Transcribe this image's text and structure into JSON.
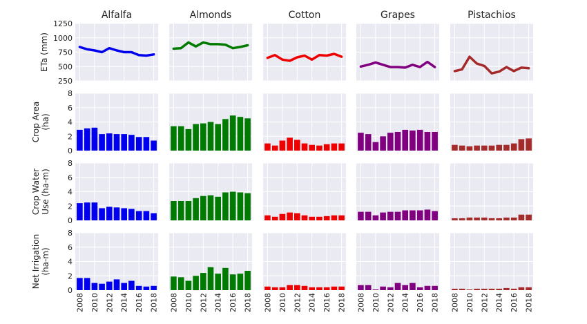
{
  "chart_data": {
    "type": "grid",
    "years": [
      2008,
      2009,
      2010,
      2011,
      2012,
      2013,
      2014,
      2015,
      2016,
      2017,
      2018
    ],
    "x_tick_labels": [
      "2008",
      "2010",
      "2012",
      "2014",
      "2016",
      "2018"
    ],
    "x_tick_values": [
      2008,
      2010,
      2012,
      2014,
      2016,
      2018
    ],
    "crops": [
      {
        "name": "Alfalfa",
        "color": "#0000ee"
      },
      {
        "name": "Almonds",
        "color": "#007a00"
      },
      {
        "name": "Cotton",
        "color": "#ee0000"
      },
      {
        "name": "Grapes",
        "color": "#800080"
      },
      {
        "name": "Pistachios",
        "color": "#a52a2a"
      }
    ],
    "rows": [
      {
        "type": "line",
        "label_lines": [
          "ETa (mm)"
        ],
        "ylim": [
          250,
          1250
        ],
        "y_ticks": [
          250,
          500,
          750,
          1000,
          1250
        ],
        "y_tick_labels": [
          "250",
          "500",
          "750",
          "1000",
          "1250"
        ],
        "values": {
          "Alfalfa": [
            840,
            800,
            780,
            750,
            820,
            780,
            750,
            750,
            700,
            690,
            710
          ],
          "Almonds": [
            810,
            820,
            920,
            850,
            920,
            890,
            890,
            880,
            820,
            840,
            870
          ],
          "Cotton": [
            650,
            700,
            620,
            600,
            660,
            690,
            620,
            700,
            690,
            720,
            670
          ],
          "Grapes": [
            500,
            530,
            570,
            530,
            490,
            490,
            480,
            530,
            490,
            580,
            490
          ],
          "Pistachios": [
            420,
            450,
            670,
            550,
            510,
            380,
            410,
            490,
            420,
            480,
            470
          ]
        }
      },
      {
        "type": "bar",
        "label_lines": [
          "Crop Area",
          "(ha)"
        ],
        "ylim": [
          0,
          8
        ],
        "y_ticks": [
          0,
          2,
          4,
          6,
          8
        ],
        "y_tick_labels": [
          "0",
          "2",
          "4",
          "6",
          "8"
        ],
        "values": {
          "Alfalfa": [
            2.9,
            3.1,
            3.2,
            2.3,
            2.4,
            2.3,
            2.3,
            2.2,
            1.9,
            1.9,
            1.4
          ],
          "Almonds": [
            3.4,
            3.4,
            3.0,
            3.7,
            3.8,
            4.0,
            3.7,
            4.4,
            4.9,
            4.7,
            4.5
          ],
          "Cotton": [
            1.0,
            0.7,
            1.4,
            1.8,
            1.5,
            1.0,
            0.8,
            0.7,
            0.9,
            1.0,
            1.0
          ],
          "Grapes": [
            2.5,
            2.3,
            1.2,
            2.0,
            2.5,
            2.6,
            2.9,
            2.8,
            2.9,
            2.6,
            2.6
          ],
          "Pistachios": [
            0.8,
            0.7,
            0.6,
            0.7,
            0.7,
            0.7,
            0.8,
            0.8,
            1.0,
            1.6,
            1.7
          ]
        }
      },
      {
        "type": "bar",
        "label_lines": [
          "Crop Water",
          "Use (ha-m)"
        ],
        "ylim": [
          0,
          8
        ],
        "y_ticks": [
          0,
          2,
          4,
          6,
          8
        ],
        "y_tick_labels": [
          "0",
          "2",
          "4",
          "6",
          "8"
        ],
        "values": {
          "Alfalfa": [
            2.4,
            2.5,
            2.5,
            1.7,
            1.9,
            1.8,
            1.7,
            1.6,
            1.3,
            1.3,
            1.0
          ],
          "Almonds": [
            2.7,
            2.7,
            2.7,
            3.1,
            3.4,
            3.5,
            3.3,
            3.9,
            4.0,
            3.9,
            3.8
          ],
          "Cotton": [
            0.7,
            0.5,
            0.9,
            1.1,
            1.0,
            0.7,
            0.5,
            0.5,
            0.6,
            0.7,
            0.7
          ],
          "Grapes": [
            1.2,
            1.2,
            0.7,
            1.1,
            1.2,
            1.2,
            1.4,
            1.4,
            1.4,
            1.5,
            1.3
          ],
          "Pistachios": [
            0.3,
            0.3,
            0.4,
            0.4,
            0.4,
            0.3,
            0.3,
            0.4,
            0.4,
            0.8,
            0.8
          ]
        }
      },
      {
        "type": "bar",
        "label_lines": [
          "Net Irrigation",
          "(ha-m)"
        ],
        "ylim": [
          0,
          8
        ],
        "y_ticks": [
          0,
          2,
          4,
          6,
          8
        ],
        "y_tick_labels": [
          "0",
          "2",
          "4",
          "6",
          "8"
        ],
        "values": {
          "Alfalfa": [
            1.7,
            1.7,
            1.0,
            0.9,
            1.2,
            1.5,
            1.0,
            1.3,
            0.6,
            0.5,
            0.6
          ],
          "Almonds": [
            1.9,
            1.8,
            1.3,
            2.0,
            2.4,
            3.2,
            2.3,
            3.1,
            2.2,
            2.3,
            2.7
          ],
          "Cotton": [
            0.5,
            0.4,
            0.4,
            0.7,
            0.7,
            0.6,
            0.4,
            0.4,
            0.4,
            0.5,
            0.5
          ],
          "Grapes": [
            0.7,
            0.7,
            0.1,
            0.5,
            0.4,
            1.0,
            0.7,
            1.0,
            0.4,
            0.6,
            0.6
          ],
          "Pistachios": [
            0.2,
            0.2,
            0.1,
            0.2,
            0.2,
            0.2,
            0.2,
            0.3,
            0.2,
            0.4,
            0.4
          ]
        }
      }
    ],
    "grid": true,
    "legend": "none"
  }
}
